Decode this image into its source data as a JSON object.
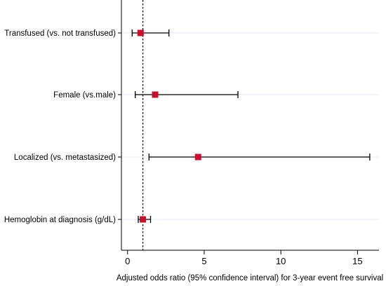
{
  "chart_data": {
    "type": "forest",
    "title": "",
    "xlabel": "Adjusted odds ratio (95% confidence interval) for 3-year event free survival",
    "ylabel": "",
    "xlim": [
      -0.4,
      16.4
    ],
    "xticks": [
      0,
      5,
      10,
      15
    ],
    "reference_line": 1,
    "grid": "horizontal",
    "categories": [
      "Transfused (vs. not transfused)",
      "Female (vs.male)",
      "Localized (vs. metastasized)",
      "Hemoglobin at diagnosis (g/dL)"
    ],
    "estimates": [
      0.85,
      1.8,
      4.6,
      1.0
    ],
    "ci_lower": [
      0.3,
      0.5,
      1.4,
      0.7
    ],
    "ci_upper": [
      2.7,
      7.2,
      15.8,
      1.5
    ],
    "colors": {
      "marker": "#c8102e",
      "line": "#000000",
      "grid": "#e4ebf0",
      "reference": "#000000"
    }
  }
}
